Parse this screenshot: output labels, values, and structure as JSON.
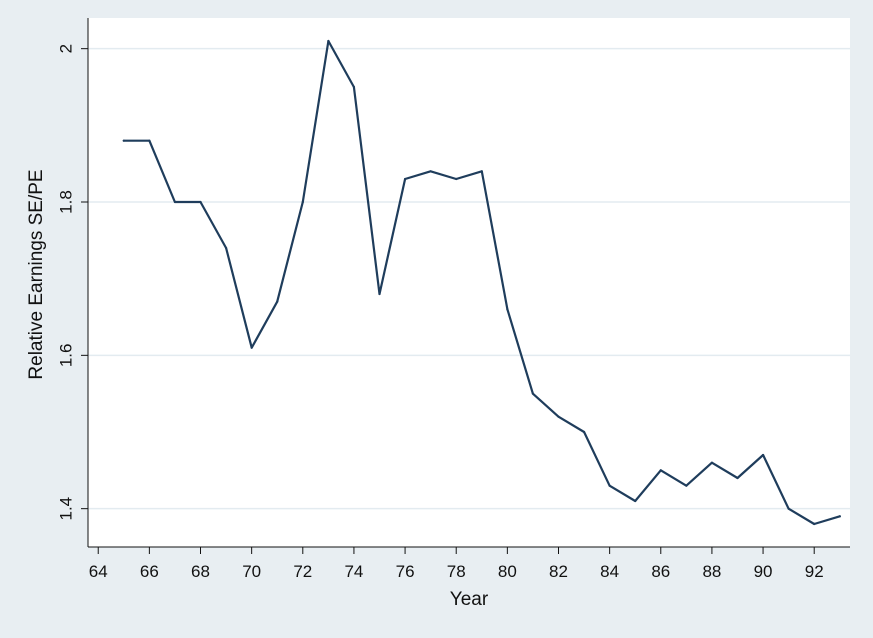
{
  "chart_data": {
    "type": "line",
    "title": "",
    "xlabel": "Year",
    "ylabel": "Relative Earnings SE/PE",
    "xlim": [
      63.6,
      93.4
    ],
    "ylim": [
      1.35,
      2.04
    ],
    "x_ticks": [
      64,
      66,
      68,
      70,
      72,
      74,
      76,
      78,
      80,
      82,
      84,
      86,
      88,
      90,
      92
    ],
    "x_tick_labels": [
      "64",
      "66",
      "68",
      "70",
      "72",
      "74",
      "76",
      "78",
      "80",
      "82",
      "84",
      "86",
      "88",
      "90",
      "92"
    ],
    "y_ticks": [
      1.4,
      1.6,
      1.8,
      2.0
    ],
    "y_tick_labels": [
      "1.4",
      "1.6",
      "1.8",
      "2"
    ],
    "grid": "horizontal",
    "colors": {
      "background": "#e8eef2",
      "plot_background": "#ffffff",
      "gridline": "#e3ebf0",
      "line": "#1f3d5c"
    },
    "series": [
      {
        "x": [
          65,
          66,
          67,
          68,
          69,
          70,
          71,
          72,
          73,
          74,
          75,
          76,
          77,
          78,
          79,
          80,
          81,
          82,
          83,
          84,
          85,
          86,
          87,
          88,
          89,
          90,
          91,
          92,
          93
        ],
        "values": [
          1.88,
          1.88,
          1.8,
          1.8,
          1.74,
          1.61,
          1.67,
          1.8,
          2.01,
          1.95,
          1.68,
          1.83,
          1.84,
          1.83,
          1.84,
          1.66,
          1.55,
          1.52,
          1.5,
          1.43,
          1.41,
          1.45,
          1.43,
          1.46,
          1.44,
          1.47,
          1.4,
          1.38,
          1.39
        ]
      }
    ]
  }
}
